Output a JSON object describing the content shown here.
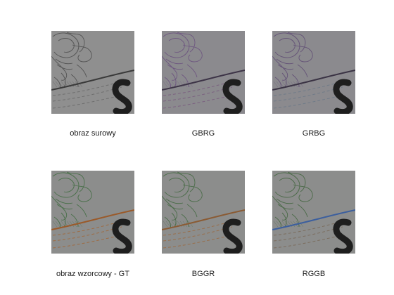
{
  "figure": {
    "panels": [
      {
        "id": "raw",
        "caption": "obraz surowy",
        "tone": "gray",
        "curve_color": "#3a3a3a",
        "dash_color": "#6b6b6b",
        "flower_color": "#4a4a4a"
      },
      {
        "id": "gbrg",
        "caption": "GBRG",
        "tone": "purple",
        "curve_color": "#3d3447",
        "dash_color": "#7a5d7f",
        "flower_color": "#6a4f7e"
      },
      {
        "id": "grbg",
        "caption": "GRBG",
        "tone": "purple",
        "curve_color": "#3a3344",
        "dash_color": "#6e7a88",
        "flower_color": "#5e4a73"
      },
      {
        "id": "gt",
        "caption": "obraz wzorcowy - GT",
        "tone": "green",
        "curve_color": "#9a5a2a",
        "dash_color": "#a0683a",
        "flower_color": "#3f6b3f"
      },
      {
        "id": "bggr",
        "caption": "BGGR",
        "tone": "green",
        "curve_color": "#8a5b34",
        "dash_color": "#9a6b44",
        "flower_color": "#41683f"
      },
      {
        "id": "rggb",
        "caption": "RGGB",
        "tone": "blue",
        "curve_color": "#3c5f9e",
        "dash_color": "#7a6a5a",
        "flower_color": "#40643d"
      }
    ]
  }
}
